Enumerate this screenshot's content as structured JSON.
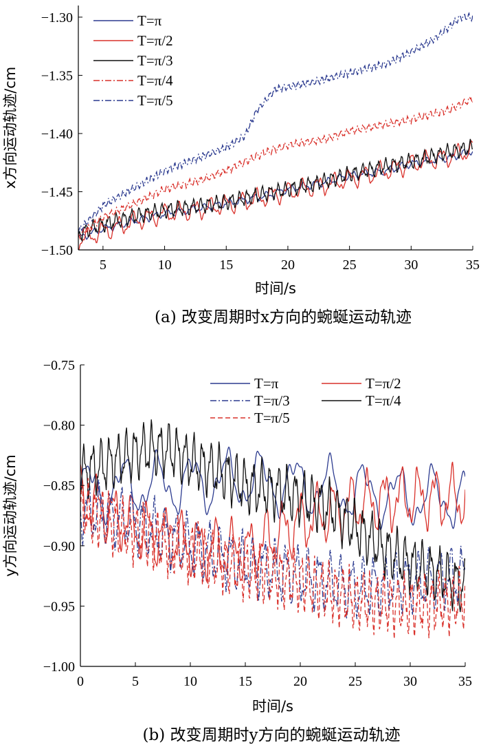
{
  "figure": {
    "caption_a": "(a)  改变周期时x方向的蜿蜒运动轨迹",
    "caption_b": "(b)  改变周期时y方向的蜿蜒运动轨迹"
  },
  "chart_data": [
    {
      "type": "line",
      "xlabel": "时间/s",
      "ylabel": "x方向运动轨迹/cm",
      "xlim": [
        3,
        35
      ],
      "ylim": [
        -1.5,
        -1.29
      ],
      "xticks": [
        "5",
        "10",
        "15",
        "20",
        "25",
        "30",
        "35"
      ],
      "yticks": [
        "-1.30",
        "-1.35",
        "-1.40",
        "-1.45",
        "-1.50"
      ],
      "legend_position": "top-left",
      "series": [
        {
          "name": "T=π",
          "color": "#2b3a8f",
          "dash": "solid",
          "x": [
            3,
            5,
            8,
            10,
            13,
            15,
            18,
            20,
            23,
            25,
            28,
            30,
            33,
            35
          ],
          "y": [
            -1.49,
            -1.482,
            -1.474,
            -1.469,
            -1.464,
            -1.46,
            -1.454,
            -1.448,
            -1.442,
            -1.436,
            -1.432,
            -1.426,
            -1.421,
            -1.415
          ],
          "amp": 0.004,
          "osc": 1.0
        },
        {
          "name": "T=π/2",
          "color": "#d9302a",
          "dash": "solid",
          "x": [
            3,
            5,
            8,
            10,
            13,
            15,
            18,
            20,
            23,
            25,
            28,
            30,
            33,
            35
          ],
          "y": [
            -1.492,
            -1.484,
            -1.474,
            -1.469,
            -1.465,
            -1.461,
            -1.455,
            -1.45,
            -1.444,
            -1.439,
            -1.432,
            -1.426,
            -1.42,
            -1.414
          ],
          "amp": 0.01,
          "osc": 0.8
        },
        {
          "name": "T=π/3",
          "color": "#111111",
          "dash": "solid",
          "x": [
            3,
            5,
            8,
            10,
            13,
            15,
            18,
            20,
            23,
            25,
            28,
            30,
            33,
            35
          ],
          "y": [
            -1.486,
            -1.478,
            -1.47,
            -1.466,
            -1.462,
            -1.459,
            -1.452,
            -1.448,
            -1.441,
            -1.435,
            -1.428,
            -1.424,
            -1.416,
            -1.412
          ],
          "amp": 0.008,
          "osc": 1.6
        },
        {
          "name": "T=π/4",
          "color": "#d9302a",
          "dash": "dashdot",
          "x": [
            3,
            5,
            8,
            10,
            13,
            15,
            18,
            20,
            23,
            25,
            28,
            30,
            33,
            35
          ],
          "y": [
            -1.488,
            -1.472,
            -1.458,
            -1.448,
            -1.44,
            -1.432,
            -1.417,
            -1.41,
            -1.405,
            -1.398,
            -1.392,
            -1.388,
            -1.38,
            -1.37
          ],
          "amp": 0.004,
          "osc": 2.2
        },
        {
          "name": "T=π/5",
          "color": "#2b3a8f",
          "dash": "dashdot",
          "x": [
            3,
            5,
            8,
            10,
            13,
            15,
            16.5,
            17.5,
            19,
            20,
            22,
            25,
            28,
            30,
            32,
            34,
            35
          ],
          "y": [
            -1.484,
            -1.462,
            -1.444,
            -1.432,
            -1.42,
            -1.412,
            -1.402,
            -1.38,
            -1.362,
            -1.36,
            -1.356,
            -1.348,
            -1.34,
            -1.33,
            -1.318,
            -1.3,
            -1.3
          ],
          "amp": 0.004,
          "osc": 2.6
        }
      ]
    },
    {
      "type": "line",
      "xlabel": "时间/s",
      "ylabel": "y方向运动轨迹/cm",
      "xlim": [
        0,
        35
      ],
      "ylim": [
        -1.0,
        -0.75
      ],
      "xticks": [
        "0",
        "5",
        "10",
        "15",
        "20",
        "25",
        "30",
        "35"
      ],
      "yticks": [
        "-0.75",
        "-0.80",
        "-0.85",
        "-0.90",
        "-0.95",
        "-1.00"
      ],
      "legend_position": "top",
      "series": [
        {
          "name": "T=π",
          "color": "#2b3a8f",
          "dash": "solid",
          "x": [
            0,
            5,
            10,
            15,
            20,
            25,
            30,
            35
          ],
          "y": [
            -0.855,
            -0.85,
            -0.848,
            -0.845,
            -0.85,
            -0.855,
            -0.86,
            -0.86
          ],
          "amp": 0.03,
          "osc": 0.32
        },
        {
          "name": "T=π/2",
          "color": "#d9302a",
          "dash": "solid",
          "x": [
            0,
            5,
            10,
            15,
            20,
            25,
            30,
            35
          ],
          "y": [
            -0.86,
            -0.885,
            -0.9,
            -0.905,
            -0.88,
            -0.865,
            -0.86,
            -0.86
          ],
          "amp": 0.03,
          "osc": 0.65
        },
        {
          "name": "T=π/3",
          "color": "#2b3a8f",
          "dash": "dashdot",
          "x": [
            0,
            5,
            10,
            15,
            20,
            25,
            30,
            35
          ],
          "y": [
            -0.87,
            -0.88,
            -0.9,
            -0.915,
            -0.925,
            -0.935,
            -0.93,
            -0.925
          ],
          "amp": 0.03,
          "osc": 1.0
        },
        {
          "name": "T=π/4",
          "color": "#111111",
          "dash": "solid",
          "x": [
            0,
            3,
            6,
            8,
            10,
            13,
            15,
            18,
            20,
            23,
            25,
            28,
            30,
            33,
            35
          ],
          "y": [
            -0.84,
            -0.83,
            -0.82,
            -0.82,
            -0.83,
            -0.84,
            -0.85,
            -0.855,
            -0.86,
            -0.87,
            -0.885,
            -0.905,
            -0.915,
            -0.925,
            -0.935
          ],
          "amp": 0.027,
          "osc": 1.3
        },
        {
          "name": "T=π/5",
          "color": "#d9302a",
          "dash": "dashed",
          "x": [
            0,
            5,
            10,
            15,
            20,
            25,
            30,
            35
          ],
          "y": [
            -0.87,
            -0.89,
            -0.905,
            -0.92,
            -0.93,
            -0.945,
            -0.95,
            -0.945
          ],
          "amp": 0.03,
          "osc": 1.6
        }
      ]
    }
  ]
}
